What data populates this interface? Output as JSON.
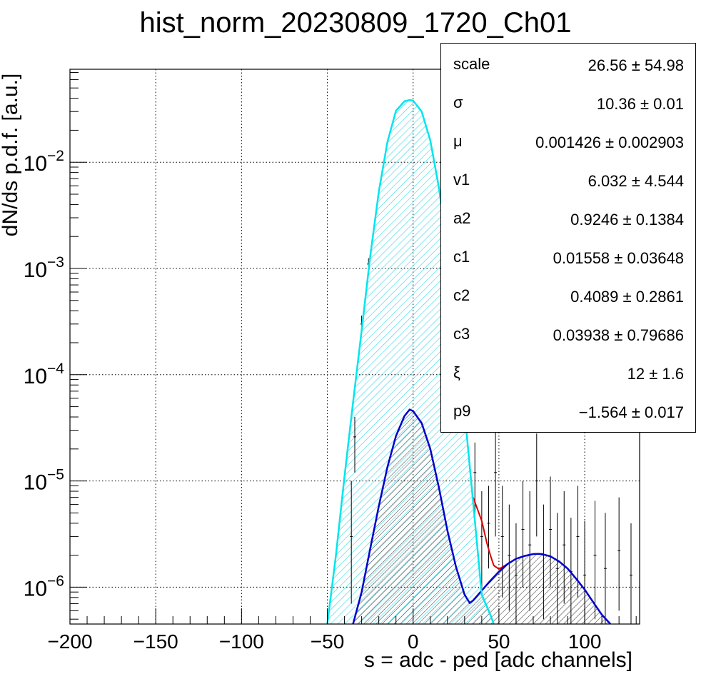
{
  "chart_data": {
    "type": "histogram-fit",
    "title": "hist_norm_20230809_1720_Ch01",
    "xlabel": "s = adc - ped [adc channels]",
    "ylabel": "dN/ds p.d.f. [a.u.]",
    "xlim": [
      -200,
      132
    ],
    "ylim": [
      4.5e-07,
      0.075
    ],
    "ylog": true,
    "grid": true,
    "x_ticks": [
      -200,
      -150,
      -100,
      -50,
      0,
      50,
      100
    ],
    "x_tick_labels": [
      "−200",
      "−150",
      "−100",
      "−50",
      "0",
      "50",
      "100"
    ],
    "y_ticks": [
      1e-06,
      1e-05,
      0.0001,
      0.001,
      0.01
    ],
    "y_tick_labels": [
      {
        "base": "10",
        "exp": "−6"
      },
      {
        "base": "10",
        "exp": "−5"
      },
      {
        "base": "10",
        "exp": "−4"
      },
      {
        "base": "10",
        "exp": "−3"
      },
      {
        "base": "10",
        "exp": "−2"
      }
    ],
    "series": [
      {
        "key": "pedestal",
        "color": "#00e5ee",
        "x": [
          -50,
          -45,
          -40,
          -35,
          -30,
          -25,
          -20,
          -15,
          -10,
          -5,
          -2,
          0,
          5,
          10,
          15,
          20,
          25,
          30,
          35,
          40,
          45,
          47
        ],
        "y": [
          4.5e-07,
          2e-06,
          1.1e-05,
          5.5e-05,
          0.00026,
          0.0013,
          0.0053,
          0.0155,
          0.0305,
          0.0375,
          0.0385,
          0.038,
          0.03,
          0.016,
          0.0058,
          0.0015,
          0.00027,
          4.5e-05,
          6.3e-06,
          8.5e-07,
          5.5e-07,
          4.5e-07
        ]
      },
      {
        "key": "signal",
        "color": "#0000cc",
        "x": [
          -35,
          -30,
          -25,
          -20,
          -15,
          -10,
          -5,
          -2,
          0,
          5,
          10,
          15,
          20,
          25,
          30,
          33,
          35,
          40,
          45,
          50,
          55,
          60,
          65,
          70,
          73,
          75,
          80,
          85,
          90,
          95,
          100,
          105,
          110,
          115
        ],
        "y": [
          4.5e-07,
          9e-07,
          2.3e-06,
          5.8e-06,
          1.35e-05,
          2.65e-05,
          4.1e-05,
          4.7e-05,
          4.55e-05,
          3.5e-05,
          2e-05,
          8.7e-06,
          3.4e-06,
          1.55e-06,
          8.5e-07,
          7.1e-07,
          7.5e-07,
          9.3e-07,
          1.15e-06,
          1.4e-06,
          1.65e-06,
          1.85e-06,
          1.97e-06,
          2.05e-06,
          2.06e-06,
          2.05e-06,
          1.95e-06,
          1.75e-06,
          1.5e-06,
          1.2e-06,
          9.5e-07,
          7.2e-07,
          5.5e-07,
          4.5e-07
        ]
      },
      {
        "key": "total",
        "color": "#dd0000",
        "x": [
          35,
          40,
          43,
          45,
          47,
          50,
          55,
          60,
          65,
          70,
          73
        ],
        "y": [
          7e-06,
          4.2e-06,
          2.6e-06,
          2e-06,
          1.6e-06,
          1.48e-06,
          1.65e-06,
          1.85e-06,
          1.97e-06,
          2.05e-06,
          2.06e-06
        ]
      }
    ],
    "error_bars": [
      {
        "x": -36,
        "y": 3e-06,
        "lo": 7e-07,
        "hi": 1e-05
      },
      {
        "x": -34,
        "y": 2.6e-05,
        "lo": 1.2e-05,
        "hi": 4e-05
      },
      {
        "x": -30,
        "y": 0.0003,
        "lo": 0.00024,
        "hi": 0.00036
      },
      {
        "x": -26,
        "y": 0.0011,
        "lo": 0.00095,
        "hi": 0.00125
      },
      {
        "x": 36,
        "y": 1.2e-05,
        "lo": 5e-06,
        "hi": 2.3e-05
      },
      {
        "x": 40,
        "y": 3e-06,
        "lo": 1e-06,
        "hi": 8e-06
      },
      {
        "x": 44,
        "y": 4e-06,
        "lo": 1.5e-06,
        "hi": 9e-06
      },
      {
        "x": 48,
        "y": 1.2e-05,
        "lo": 3e-06,
        "hi": 3.2e-05
      },
      {
        "x": 52,
        "y": 3e-06,
        "lo": 8e-07,
        "hi": 9e-06
      },
      {
        "x": 56,
        "y": 2e-06,
        "lo": 6e-07,
        "hi": 6e-06
      },
      {
        "x": 60,
        "y": 1.3e-06,
        "lo": 4.5e-07,
        "hi": 4e-06
      },
      {
        "x": 64,
        "y": 3.5e-06,
        "lo": 1e-06,
        "hi": 1e-05
      },
      {
        "x": 68,
        "y": 2.5e-06,
        "lo": 6e-07,
        "hi": 8e-06
      },
      {
        "x": 72,
        "y": 1e-05,
        "lo": 3e-06,
        "hi": 2.8e-05
      },
      {
        "x": 76,
        "y": 2e-06,
        "lo": 5e-07,
        "hi": 6e-06
      },
      {
        "x": 80,
        "y": 3.5e-06,
        "lo": 1e-06,
        "hi": 1.1e-05
      },
      {
        "x": 84,
        "y": 1.5e-06,
        "lo": 4.5e-07,
        "hi": 5e-06
      },
      {
        "x": 88,
        "y": 2.5e-06,
        "lo": 7e-07,
        "hi": 8e-06
      },
      {
        "x": 92,
        "y": 1.4e-06,
        "lo": 4.5e-07,
        "hi": 4.5e-06
      },
      {
        "x": 96,
        "y": 3e-06,
        "lo": 8e-07,
        "hi": 9e-06
      },
      {
        "x": 100,
        "y": 1.3e-06,
        "lo": 4.5e-07,
        "hi": 4.2e-06
      },
      {
        "x": 106,
        "y": 2e-06,
        "lo": 5e-07,
        "hi": 6.5e-06
      },
      {
        "x": 112,
        "y": 1.5e-06,
        "lo": 4.5e-07,
        "hi": 5e-06
      },
      {
        "x": 120,
        "y": 2.2e-06,
        "lo": 6e-07,
        "hi": 7e-06
      },
      {
        "x": 127,
        "y": 1.3e-06,
        "lo": 4.5e-07,
        "hi": 4e-06
      }
    ],
    "stats": [
      {
        "name": "scale",
        "value": "26.56 ± 54.98"
      },
      {
        "name": "σ",
        "value": "10.36 ± 0.01"
      },
      {
        "name": "μ",
        "value": "0.001426 ± 0.002903"
      },
      {
        "name": "v1",
        "value": "6.032 ± 4.544"
      },
      {
        "name": "a2",
        "value": "0.9246 ± 0.1384"
      },
      {
        "name": "c1",
        "value": "0.01558 ± 0.03648"
      },
      {
        "name": "c2",
        "value": "0.4089 ± 0.2861"
      },
      {
        "name": "c3",
        "value": "0.03938 ± 0.79686"
      },
      {
        "name": "ξ",
        "value": "12 ± 1.6"
      },
      {
        "name": "p9",
        "value": "−1.564 ± 0.017"
      }
    ]
  }
}
